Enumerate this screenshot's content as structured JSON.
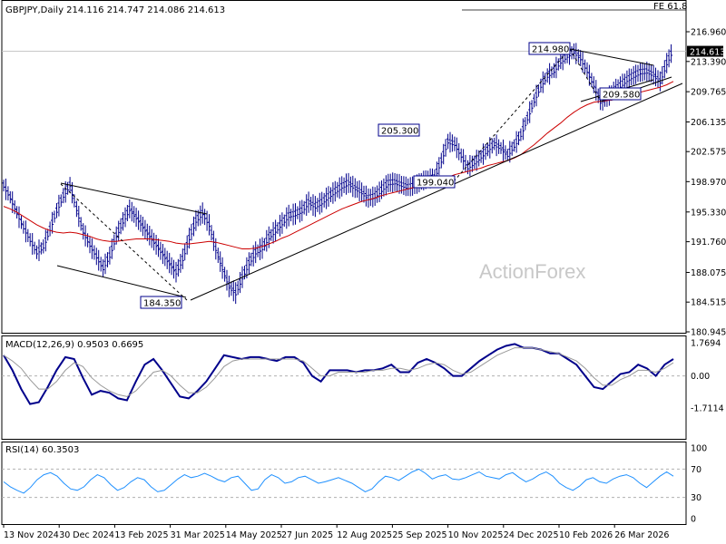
{
  "header": {
    "symbol_line": "GBPJPY,Daily  214.116 214.747 214.086 214.613",
    "fe_label": "FE 61.8",
    "watermark": "ActionForex"
  },
  "chart_data": [
    {
      "type": "line",
      "panel": "price",
      "title": "GBPJPY,Daily  214.116 214.747 214.086 214.613",
      "y_ticks": [
        "216.960",
        "213.390",
        "209.765",
        "206.135",
        "202.575",
        "198.970",
        "195.330",
        "191.760",
        "188.075",
        "184.515",
        "180.945"
      ],
      "ylim": [
        180.945,
        216.96
      ],
      "current_price": "214.613",
      "price_levels": [
        "214.980",
        "205.300",
        "209.580",
        "199.040",
        "184.350"
      ],
      "series": [
        {
          "name": "",
          "style": "bars",
          "color": "#00008b",
          "values": [
            198.5,
            197.1,
            195.3,
            193.5,
            192.0,
            190.5,
            191.2,
            193.3,
            195.5,
            197.3,
            198.6,
            195.7,
            193.0,
            191.4,
            190.0,
            188.6,
            190.1,
            192.5,
            194.2,
            195.7,
            194.7,
            193.6,
            192.5,
            191.4,
            190.3,
            189.2,
            188.1,
            189.7,
            192.2,
            194.3,
            195.2,
            193.8,
            190.9,
            188.6,
            186.4,
            185.6,
            187.5,
            189.2,
            190.5,
            191.0,
            192.3,
            193.1,
            194.0,
            194.9,
            195.1,
            195.5,
            196.5,
            196.0,
            196.5,
            197.2,
            197.8,
            198.4,
            198.8,
            198.2,
            197.7,
            197.0,
            197.2,
            198.0,
            198.8,
            198.9,
            198.6,
            198.3,
            198.5,
            199.0,
            199.3,
            199.5,
            201.5,
            203.8,
            203.5,
            202.1,
            200.7,
            201.3,
            202.0,
            202.8,
            203.5,
            203.0,
            202.2,
            203.3,
            204.6,
            206.6,
            208.7,
            210.5,
            211.7,
            212.3,
            213.4,
            214.1,
            214.6,
            213.8,
            212.3,
            210.6,
            208.6,
            209.0,
            209.9,
            210.5,
            211.2,
            211.7,
            212.1,
            212.2,
            211.8,
            211.0,
            213.2,
            214.9
          ]
        },
        {
          "name": "",
          "style": "line",
          "color": "#cc0000",
          "values": [
            196.0,
            195.7,
            195.3,
            194.8,
            194.3,
            193.8,
            193.4,
            193.1,
            192.9,
            192.8,
            192.9,
            192.8,
            192.6,
            192.4,
            192.1,
            191.9,
            191.8,
            191.8,
            191.9,
            192.0,
            192.1,
            192.1,
            192.1,
            192.0,
            191.9,
            191.8,
            191.6,
            191.5,
            191.5,
            191.6,
            191.7,
            191.8,
            191.7,
            191.5,
            191.3,
            191.1,
            190.9,
            190.9,
            191.0,
            191.2,
            191.5,
            191.8,
            192.2,
            192.5,
            192.9,
            193.3,
            193.7,
            194.1,
            194.5,
            194.9,
            195.3,
            195.7,
            196.0,
            196.3,
            196.6,
            196.8,
            197.0,
            197.3,
            197.5,
            197.7,
            197.9,
            198.1,
            198.3,
            198.5,
            198.7,
            198.8,
            199.1,
            199.5,
            199.8,
            200.0,
            200.2,
            200.4,
            200.6,
            200.9,
            201.1,
            201.3,
            201.5,
            201.8,
            202.2,
            202.8,
            203.4,
            204.1,
            204.8,
            205.4,
            206.0,
            206.7,
            207.3,
            207.8,
            208.2,
            208.5,
            208.6,
            208.7,
            208.8,
            209.0,
            209.2,
            209.4,
            209.7,
            209.9,
            210.1,
            210.3,
            210.6,
            211.0
          ]
        }
      ]
    },
    {
      "type": "line",
      "panel": "macd",
      "title": "MACD(12,26,9) 0.9503 0.6695",
      "y_ticks": [
        "1.7694",
        "0.00",
        "-1.7114"
      ],
      "ylim": [
        -1.7114,
        1.7694
      ],
      "series": [
        {
          "name": "",
          "color": "#00008b",
          "values": [
            1.1,
            0.3,
            -0.7,
            -1.5,
            -1.4,
            -0.6,
            0.3,
            1.0,
            0.9,
            -0.1,
            -1.0,
            -0.8,
            -0.9,
            -1.2,
            -1.3,
            -0.3,
            0.6,
            0.9,
            0.3,
            -0.4,
            -1.1,
            -1.2,
            -0.8,
            -0.3,
            0.4,
            1.1,
            1.0,
            0.9,
            1.0,
            1.0,
            0.9,
            0.8,
            1.0,
            1.0,
            0.7,
            0.0,
            -0.3,
            0.3,
            0.3,
            0.3,
            0.2,
            0.3,
            0.3,
            0.4,
            0.6,
            0.2,
            0.2,
            0.7,
            0.9,
            0.7,
            0.4,
            0.0,
            0.0,
            0.4,
            0.8,
            1.1,
            1.4,
            1.6,
            1.7,
            1.5,
            1.5,
            1.4,
            1.2,
            1.2,
            0.9,
            0.6,
            0.0,
            -0.6,
            -0.7,
            -0.3,
            0.1,
            0.2,
            0.6,
            0.4,
            0.0,
            0.6,
            0.9
          ]
        },
        {
          "name": "",
          "color": "#999999",
          "values": [
            1.1,
            0.8,
            0.4,
            -0.2,
            -0.7,
            -0.7,
            -0.3,
            0.3,
            0.7,
            0.5,
            -0.1,
            -0.5,
            -0.8,
            -1.0,
            -1.1,
            -0.8,
            -0.3,
            0.2,
            0.3,
            0.0,
            -0.5,
            -0.9,
            -0.9,
            -0.6,
            -0.1,
            0.5,
            0.8,
            0.9,
            0.9,
            0.9,
            0.9,
            0.9,
            0.9,
            0.9,
            0.8,
            0.4,
            0.0,
            0.0,
            0.2,
            0.2,
            0.2,
            0.2,
            0.3,
            0.3,
            0.4,
            0.4,
            0.3,
            0.4,
            0.6,
            0.7,
            0.6,
            0.3,
            0.1,
            0.2,
            0.5,
            0.8,
            1.1,
            1.3,
            1.5,
            1.5,
            1.5,
            1.4,
            1.3,
            1.2,
            1.0,
            0.8,
            0.4,
            -0.1,
            -0.5,
            -0.5,
            -0.2,
            0.0,
            0.3,
            0.3,
            0.2,
            0.4,
            0.7
          ]
        }
      ]
    },
    {
      "type": "line",
      "panel": "rsi",
      "title": "RSI(14) 60.3503",
      "y_ticks": [
        "100",
        "70",
        "30",
        "0"
      ],
      "ylim": [
        0,
        100
      ],
      "series": [
        {
          "name": "",
          "color": "#1e90ff",
          "values": [
            52,
            45,
            40,
            36,
            44,
            55,
            62,
            65,
            60,
            50,
            42,
            40,
            45,
            55,
            62,
            58,
            48,
            40,
            44,
            52,
            58,
            55,
            45,
            38,
            40,
            48,
            56,
            62,
            58,
            60,
            64,
            60,
            55,
            52,
            58,
            60,
            50,
            40,
            42,
            55,
            62,
            58,
            50,
            52,
            58,
            60,
            55,
            50,
            52,
            55,
            58,
            54,
            50,
            44,
            38,
            42,
            52,
            60,
            58,
            54,
            60,
            66,
            70,
            64,
            56,
            60,
            62,
            56,
            55,
            58,
            62,
            66,
            60,
            58,
            56,
            62,
            65,
            58,
            52,
            56,
            62,
            66,
            60,
            50,
            44,
            40,
            46,
            55,
            58,
            52,
            50,
            56,
            60,
            62,
            58,
            50,
            44,
            52,
            60,
            66,
            60
          ]
        }
      ]
    }
  ],
  "x_axis_labels": [
    "13 Nov 2024",
    "30 Dec 2024",
    "13 Feb 2025",
    "31 Mar 2025",
    "14 May 2025",
    "27 Jun 2025",
    "12 Aug 2025",
    "25 Sep 2025",
    "10 Nov 2025",
    "24 Dec 2025",
    "10 Feb 2026",
    "26 Mar 2026"
  ]
}
